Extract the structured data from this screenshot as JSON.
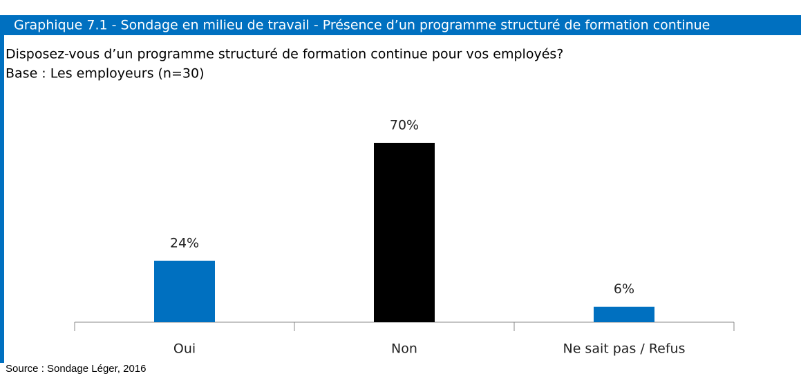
{
  "header": {
    "title": "Graphique  7.1 - Sondage en milieu de travail - Présence d’un programme structuré de formation continue"
  },
  "question": "Disposez-vous d’un programme structuré de formation continue pour vos employés?",
  "base": "Base : Les employeurs (n=30)",
  "source": "Source : Sondage Léger, 2016",
  "chart_data": {
    "type": "bar",
    "categories": [
      "Oui",
      "Non",
      "Ne sait pas / Refus"
    ],
    "values": [
      24,
      70,
      6
    ],
    "value_labels": [
      "24%",
      "70%",
      "6%"
    ],
    "colors": [
      "#0070c0",
      "#000000",
      "#0070c0"
    ]
  }
}
